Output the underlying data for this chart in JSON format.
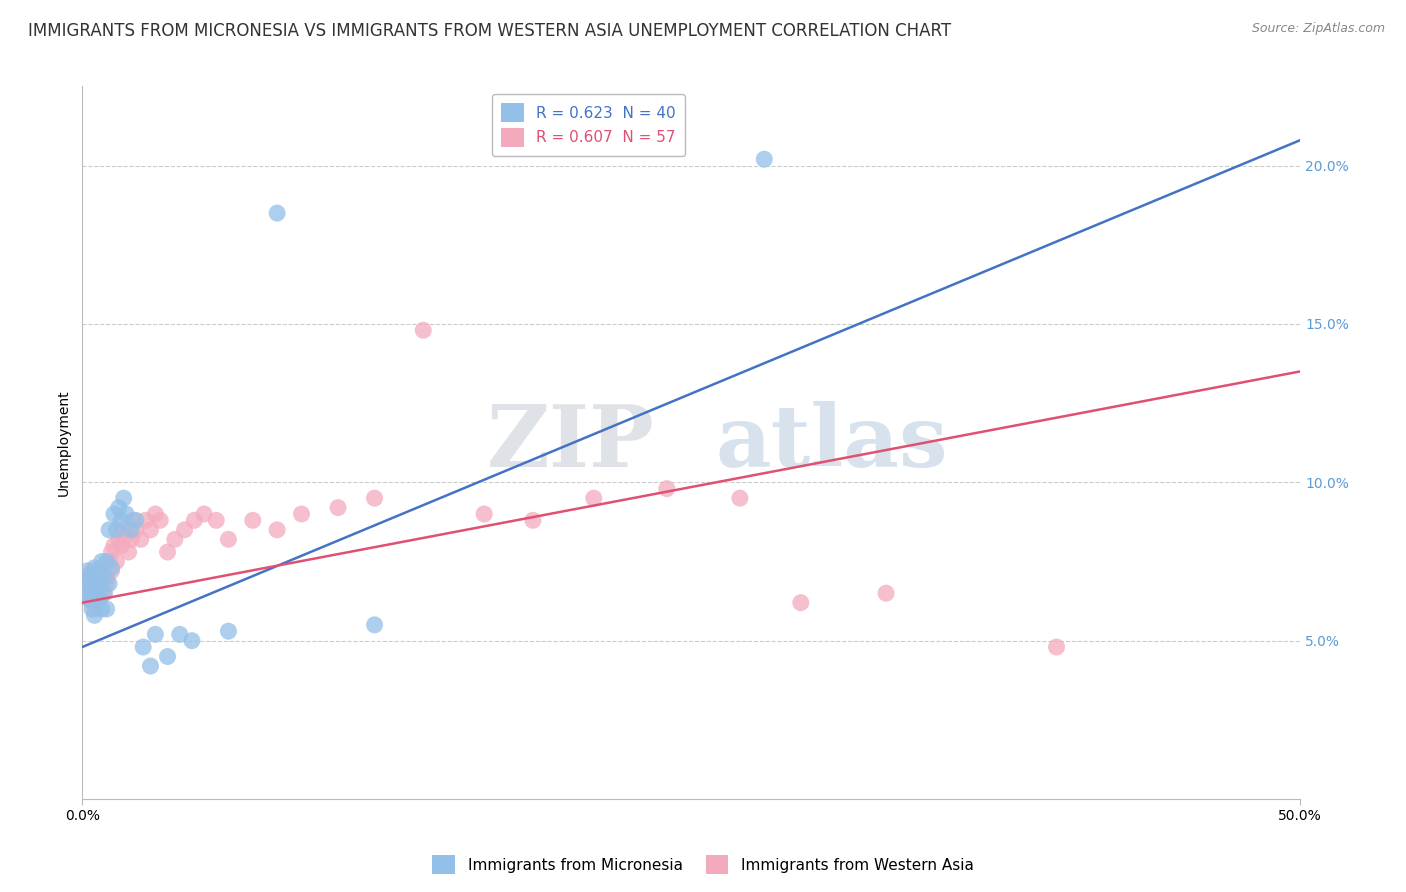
{
  "title": "IMMIGRANTS FROM MICRONESIA VS IMMIGRANTS FROM WESTERN ASIA UNEMPLOYMENT CORRELATION CHART",
  "source": "Source: ZipAtlas.com",
  "ylabel": "Unemployment",
  "xlim": [
    0,
    0.5
  ],
  "ylim": [
    0.0,
    0.225
  ],
  "xtick_vals": [
    0.0,
    0.5
  ],
  "xtick_labels": [
    "0.0%",
    "50.0%"
  ],
  "yticks_right": [
    0.05,
    0.1,
    0.15,
    0.2
  ],
  "ytick_labels_right": [
    "5.0%",
    "10.0%",
    "15.0%",
    "20.0%"
  ],
  "blue_color": "#92C0E8",
  "pink_color": "#F4AABD",
  "blue_line_color": "#4472C4",
  "pink_line_color": "#E05070",
  "legend_blue_text": "R = 0.623  N = 40",
  "legend_pink_text": "R = 0.607  N = 57",
  "legend_label_blue": "Immigrants from Micronesia",
  "legend_label_pink": "Immigrants from Western Asia",
  "watermark_zip": "ZIP",
  "watermark_atlas": "atlas",
  "blue_line_x0": 0.0,
  "blue_line_y0": 0.048,
  "blue_line_x1": 0.5,
  "blue_line_y1": 0.208,
  "pink_line_x0": 0.0,
  "pink_line_y0": 0.062,
  "pink_line_x1": 0.5,
  "pink_line_y1": 0.135,
  "blue_scatter_x": [
    0.001,
    0.002,
    0.002,
    0.003,
    0.003,
    0.004,
    0.004,
    0.005,
    0.005,
    0.006,
    0.006,
    0.007,
    0.007,
    0.008,
    0.008,
    0.009,
    0.009,
    0.01,
    0.01,
    0.011,
    0.011,
    0.012,
    0.013,
    0.014,
    0.015,
    0.016,
    0.017,
    0.018,
    0.02,
    0.022,
    0.025,
    0.028,
    0.03,
    0.035,
    0.04,
    0.045,
    0.06,
    0.08,
    0.12,
    0.28
  ],
  "blue_scatter_y": [
    0.068,
    0.072,
    0.065,
    0.07,
    0.063,
    0.067,
    0.06,
    0.073,
    0.058,
    0.065,
    0.071,
    0.063,
    0.068,
    0.06,
    0.075,
    0.065,
    0.07,
    0.06,
    0.075,
    0.068,
    0.085,
    0.073,
    0.09,
    0.085,
    0.092,
    0.088,
    0.095,
    0.09,
    0.085,
    0.088,
    0.048,
    0.042,
    0.052,
    0.045,
    0.052,
    0.05,
    0.053,
    0.185,
    0.055,
    0.202
  ],
  "pink_scatter_x": [
    0.001,
    0.002,
    0.002,
    0.003,
    0.003,
    0.004,
    0.004,
    0.005,
    0.005,
    0.006,
    0.006,
    0.007,
    0.007,
    0.008,
    0.008,
    0.009,
    0.01,
    0.01,
    0.011,
    0.012,
    0.012,
    0.013,
    0.014,
    0.015,
    0.016,
    0.017,
    0.018,
    0.019,
    0.02,
    0.021,
    0.022,
    0.024,
    0.026,
    0.028,
    0.03,
    0.032,
    0.035,
    0.038,
    0.042,
    0.046,
    0.05,
    0.055,
    0.06,
    0.07,
    0.08,
    0.09,
    0.105,
    0.12,
    0.14,
    0.165,
    0.185,
    0.21,
    0.24,
    0.27,
    0.295,
    0.33,
    0.4
  ],
  "pink_scatter_y": [
    0.068,
    0.065,
    0.07,
    0.063,
    0.071,
    0.068,
    0.065,
    0.072,
    0.06,
    0.068,
    0.063,
    0.07,
    0.065,
    0.068,
    0.072,
    0.065,
    0.07,
    0.068,
    0.075,
    0.072,
    0.078,
    0.08,
    0.075,
    0.082,
    0.08,
    0.085,
    0.083,
    0.078,
    0.082,
    0.088,
    0.085,
    0.082,
    0.088,
    0.085,
    0.09,
    0.088,
    0.078,
    0.082,
    0.085,
    0.088,
    0.09,
    0.088,
    0.082,
    0.088,
    0.085,
    0.09,
    0.092,
    0.095,
    0.148,
    0.09,
    0.088,
    0.095,
    0.098,
    0.095,
    0.062,
    0.065,
    0.048
  ],
  "background_color": "#FFFFFF",
  "grid_color": "#CCCCCC",
  "axis_tick_color": "#5B9BD5",
  "title_color": "#333333",
  "title_fontsize": 12,
  "ylabel_fontsize": 10,
  "tick_fontsize": 10,
  "legend_fontsize": 11
}
